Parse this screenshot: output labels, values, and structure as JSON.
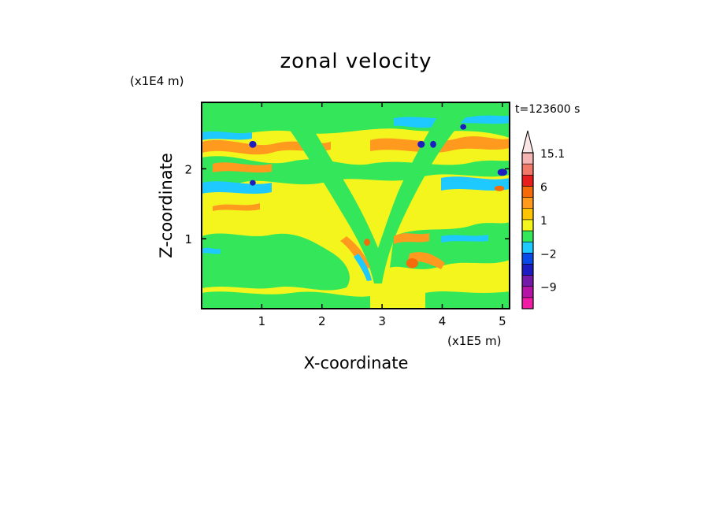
{
  "chart_data": {
    "type": "heatmap",
    "title": "zonal velocity",
    "xlabel": "X-coordinate",
    "ylabel": "Z-coordinate",
    "x_multiplier": "(x1E5 m)",
    "y_multiplier": "(x1E4 m)",
    "time_label": "t=123600 s",
    "xlim": [
      0,
      5.12
    ],
    "ylim": [
      0,
      2.95
    ],
    "x_ticks": [
      1,
      2,
      3,
      4,
      5
    ],
    "y_ticks": [
      1,
      2
    ],
    "x_tick_labels": [
      "1",
      "2",
      "3",
      "4",
      "5"
    ],
    "y_tick_labels": [
      "1",
      "2"
    ],
    "colorbar": {
      "levels": [
        {
          "color": "#f01ca6",
          "upper": -12
        },
        {
          "color": "#b415a5",
          "upper": -9
        },
        {
          "color": "#741aa8",
          "upper": -6
        },
        {
          "color": "#1c1cc0",
          "upper": -4
        },
        {
          "color": "#0a4ae6",
          "upper": -2
        },
        {
          "color": "#1ec9ff",
          "upper": -1
        },
        {
          "color": "#33e65a",
          "upper": 0
        },
        {
          "color": "#f5f51e",
          "upper": 1
        },
        {
          "color": "#ffc400",
          "upper": 2
        },
        {
          "color": "#ff9a1e",
          "upper": 3
        },
        {
          "color": "#f56a0a",
          "upper": 6
        },
        {
          "color": "#e61e1e",
          "upper": 9
        },
        {
          "color": "#f07a6a",
          "upper": 12
        },
        {
          "color": "#f5b4b4",
          "upper": 15.1
        }
      ],
      "labels": [
        "15.1",
        "6",
        "1",
        "−2",
        "−9"
      ],
      "label_values": [
        15.1,
        6,
        1,
        -2,
        -9
      ],
      "extend": "max"
    },
    "features": [
      {
        "x": 0.85,
        "z": 2.35,
        "level": "#1c1cc0",
        "rx": 0.06,
        "rz": 0.05
      },
      {
        "x": 0.85,
        "z": 1.8,
        "level": "#1c1cc0",
        "rx": 0.05,
        "rz": 0.04
      },
      {
        "x": 3.65,
        "z": 2.35,
        "level": "#1c1cc0",
        "rx": 0.06,
        "rz": 0.05
      },
      {
        "x": 3.85,
        "z": 2.35,
        "level": "#1c1cc0",
        "rx": 0.05,
        "rz": 0.05
      },
      {
        "x": 4.35,
        "z": 2.6,
        "level": "#1c1cc0",
        "rx": 0.05,
        "rz": 0.04
      },
      {
        "x": 5.0,
        "z": 1.95,
        "level": "#1c1cc0",
        "rx": 0.08,
        "rz": 0.05
      },
      {
        "x": 4.95,
        "z": 1.72,
        "level": "#f56a0a",
        "rx": 0.08,
        "rz": 0.04
      },
      {
        "x": 3.5,
        "z": 0.65,
        "level": "#f56a0a",
        "rx": 0.1,
        "rz": 0.07
      },
      {
        "x": 2.75,
        "z": 0.95,
        "level": "#f56a0a",
        "rx": 0.05,
        "rz": 0.05
      }
    ]
  }
}
